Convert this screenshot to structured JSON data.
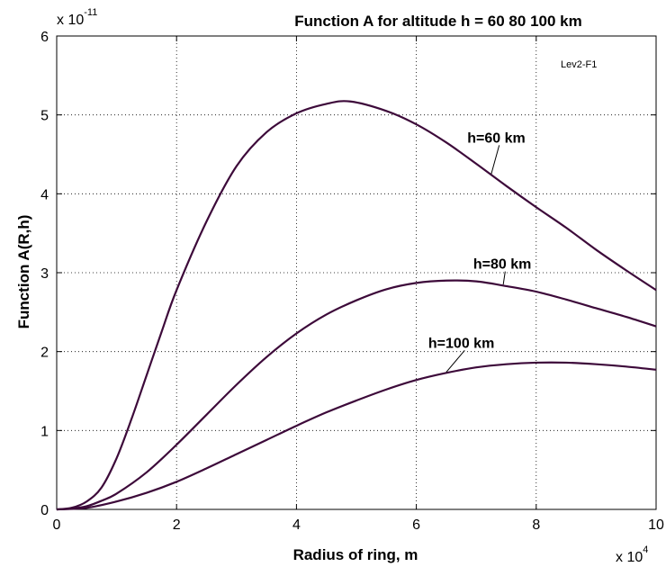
{
  "chart_data": {
    "type": "line",
    "title": "Function A for altitude h = 60  80 100 km",
    "xlabel": "Radius of ring, m",
    "ylabel": "Function A(R,h)",
    "x_multiplier": {
      "base": "x 10",
      "exponent": "4"
    },
    "y_multiplier": {
      "base": "x 10",
      "exponent": "-11"
    },
    "xlim": [
      0,
      10
    ],
    "ylim": [
      0,
      6
    ],
    "x_ticks": [
      "0",
      "2",
      "4",
      "6",
      "8",
      "10"
    ],
    "y_ticks": [
      "0",
      "1",
      "2",
      "3",
      "4",
      "5",
      "6"
    ],
    "grid": true,
    "note": "Lev2-F1",
    "line_color": "#3d0a3a",
    "series": [
      {
        "label": "h=60 km",
        "x": [
          0,
          0.25,
          0.5,
          0.75,
          1,
          1.25,
          1.5,
          1.75,
          2,
          2.5,
          3,
          3.5,
          4,
          4.5,
          4.9,
          5.5,
          6,
          6.5,
          7,
          7.5,
          8,
          8.5,
          9,
          9.5,
          10
        ],
        "y": [
          0,
          0.02,
          0.1,
          0.28,
          0.65,
          1.15,
          1.7,
          2.25,
          2.78,
          3.65,
          4.35,
          4.78,
          5.02,
          5.14,
          5.17,
          5.05,
          4.88,
          4.65,
          4.38,
          4.1,
          3.83,
          3.57,
          3.29,
          3.03,
          2.78
        ]
      },
      {
        "label": "h=80 km",
        "x": [
          0,
          0.25,
          0.5,
          0.75,
          1,
          1.5,
          2,
          2.5,
          3,
          3.5,
          4,
          4.5,
          5,
          5.5,
          6,
          6.5,
          7,
          7.5,
          8,
          8.5,
          9,
          9.5,
          10
        ],
        "y": [
          0,
          0.01,
          0.04,
          0.11,
          0.2,
          0.47,
          0.82,
          1.2,
          1.58,
          1.93,
          2.23,
          2.47,
          2.65,
          2.79,
          2.87,
          2.9,
          2.89,
          2.83,
          2.76,
          2.66,
          2.55,
          2.44,
          2.32
        ]
      },
      {
        "label": "h=100 km",
        "x": [
          0,
          0.5,
          1,
          1.5,
          2,
          2.5,
          3,
          3.5,
          4,
          4.5,
          5,
          5.5,
          6,
          6.5,
          7,
          7.5,
          8,
          8.5,
          9,
          9.5,
          10
        ],
        "y": [
          0,
          0.02,
          0.1,
          0.21,
          0.35,
          0.52,
          0.7,
          0.88,
          1.06,
          1.23,
          1.38,
          1.52,
          1.64,
          1.73,
          1.8,
          1.84,
          1.86,
          1.86,
          1.84,
          1.81,
          1.77
        ]
      }
    ],
    "annotations": [
      {
        "text": "h=60 km",
        "x": 6.85,
        "y": 4.65,
        "target_x": 7.25,
        "target_y": 4.25
      },
      {
        "text": "h=80 km",
        "x": 6.95,
        "y": 3.05,
        "target_x": 7.45,
        "target_y": 2.85
      },
      {
        "text": "h=100 km",
        "x": 6.2,
        "y": 2.05,
        "target_x": 6.5,
        "target_y": 1.74
      }
    ]
  }
}
